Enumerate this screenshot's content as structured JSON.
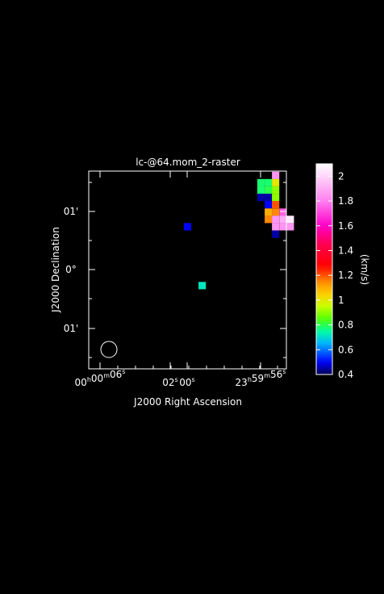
{
  "chart_data": {
    "type": "heatmap",
    "title": "lc-@64.mom_2-raster",
    "xlabel": "J2000 Right Ascension",
    "ylabel": "J2000 Declination",
    "colorbar_label": "(km/s)",
    "x_ticks": [
      {
        "h": "00",
        "m": "00",
        "s": "06"
      },
      {
        "h": "",
        "m": "",
        "s": "02"
      },
      {
        "h": "",
        "m": "",
        "s": "00"
      },
      {
        "h": "23",
        "m": "59",
        "s": "56"
      }
    ],
    "y_ticks": [
      "01'",
      "0°",
      "01'"
    ],
    "colorbar_range": [
      0.4,
      2.1
    ],
    "colorbar_ticks": [
      "0.4",
      "0.6",
      "0.8",
      "1",
      "1.2",
      "1.4",
      "1.6",
      "1.8",
      "2"
    ],
    "colormap": [
      {
        "v": 0.4,
        "color": "#000050"
      },
      {
        "v": 0.5,
        "color": "#0000ff"
      },
      {
        "v": 0.65,
        "color": "#00b4ff"
      },
      {
        "v": 0.75,
        "color": "#00ffa0"
      },
      {
        "v": 0.85,
        "color": "#55ff00"
      },
      {
        "v": 0.95,
        "color": "#c8ff00"
      },
      {
        "v": 1.05,
        "color": "#ffd000"
      },
      {
        "v": 1.15,
        "color": "#ff8800"
      },
      {
        "v": 1.28,
        "color": "#ff0000"
      },
      {
        "v": 1.45,
        "color": "#ff0050"
      },
      {
        "v": 1.6,
        "color": "#ff00c8"
      },
      {
        "v": 1.8,
        "color": "#ff80f0"
      },
      {
        "v": 2.1,
        "color": "#ffffff"
      }
    ],
    "pixels": [
      {
        "col": 35,
        "row": 12,
        "v": 1.85
      },
      {
        "col": 33,
        "row": 11,
        "v": 0.78
      },
      {
        "col": 34,
        "row": 11,
        "v": 0.78
      },
      {
        "col": 35,
        "row": 11,
        "v": 1.0
      },
      {
        "col": 33,
        "row": 10,
        "v": 0.78
      },
      {
        "col": 34,
        "row": 10,
        "v": 0.8
      },
      {
        "col": 35,
        "row": 10,
        "v": 0.9
      },
      {
        "col": 33,
        "row": 9,
        "v": 0.45
      },
      {
        "col": 34,
        "row": 9,
        "v": 0.45
      },
      {
        "col": 35,
        "row": 9,
        "v": 0.9
      },
      {
        "col": 34,
        "row": 8,
        "v": 0.5
      },
      {
        "col": 35,
        "row": 8,
        "v": 1.2
      },
      {
        "col": 34,
        "row": 7,
        "v": 1.1
      },
      {
        "col": 35,
        "row": 7,
        "v": 1.15
      },
      {
        "col": 36,
        "row": 7,
        "v": 1.75
      },
      {
        "col": 34,
        "row": 6,
        "v": 1.15
      },
      {
        "col": 35,
        "row": 6,
        "v": 1.85
      },
      {
        "col": 36,
        "row": 6,
        "v": 1.9
      },
      {
        "col": 37,
        "row": 6,
        "v": 2.05
      },
      {
        "col": 35,
        "row": 5,
        "v": 1.85
      },
      {
        "col": 36,
        "row": 5,
        "v": 1.85
      },
      {
        "col": 37,
        "row": 5,
        "v": 1.85
      },
      {
        "col": 35,
        "row": 4,
        "v": 0.45
      },
      {
        "col": 23,
        "row": 5,
        "v": 0.5
      },
      {
        "col": 25,
        "row": -3,
        "v": 0.72
      }
    ],
    "beam": "circle"
  }
}
